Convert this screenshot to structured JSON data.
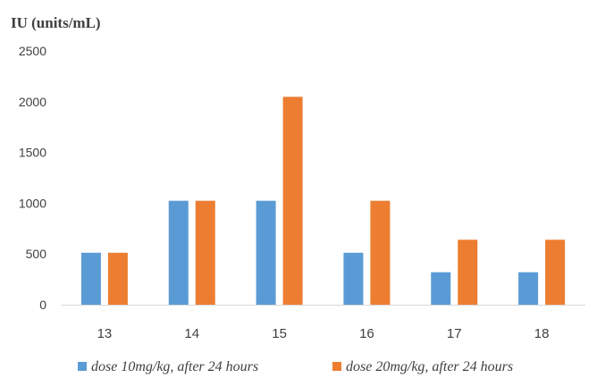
{
  "chart_data": {
    "type": "bar",
    "ylabel": "IU (units/mL)",
    "xlabel": "",
    "categories": [
      "13",
      "14",
      "15",
      "16",
      "17",
      "18"
    ],
    "ylim": [
      0,
      2500
    ],
    "yticks": [
      "0",
      "500",
      "1000",
      "1500",
      "2000",
      "2500"
    ],
    "grid": false,
    "legend_position": "bottom",
    "series": [
      {
        "name": "dose 10mg/kg, after 24 hours",
        "color": "#5B9BD5",
        "values": [
          512,
          1024,
          1024,
          512,
          320,
          320
        ]
      },
      {
        "name": "dose 20mg/kg, after 24 hours",
        "color": "#ED7D31",
        "values": [
          512,
          1024,
          2048,
          1024,
          640,
          640
        ]
      }
    ]
  }
}
